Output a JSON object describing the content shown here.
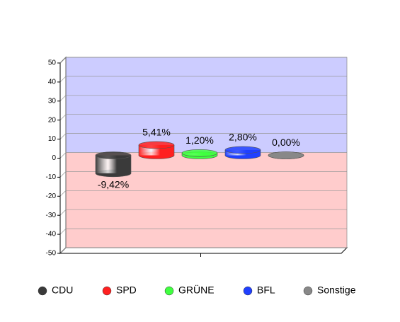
{
  "chart_data": {
    "type": "bar",
    "categories": [
      "CDU",
      "SPD",
      "GRÜNE",
      "BFL",
      "Sonstige"
    ],
    "values": [
      -9.42,
      5.41,
      1.2,
      2.8,
      0.0
    ],
    "value_labels": [
      "-9,42%",
      "5,41%",
      "1,20%",
      "2,80%",
      "0,00%"
    ],
    "colors": [
      "#3a3a3a",
      "#ff2020",
      "#40ff40",
      "#2040ff",
      "#888888"
    ],
    "ylim": [
      -50,
      50
    ],
    "yticks": [
      -50,
      -40,
      -30,
      -20,
      -10,
      0,
      10,
      20,
      30,
      40,
      50
    ],
    "grid": true
  }
}
